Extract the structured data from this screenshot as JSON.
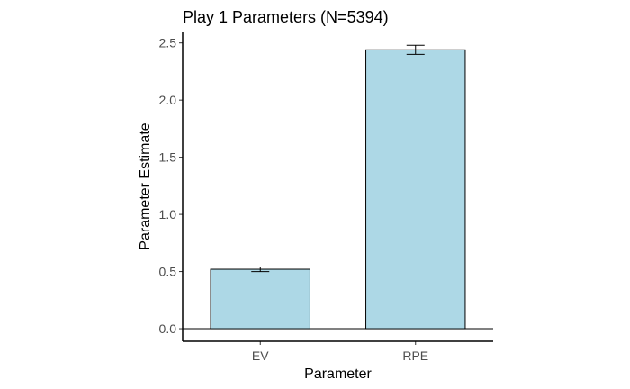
{
  "chart_data": {
    "type": "bar",
    "title": "Play 1 Parameters (N=5394)",
    "xlabel": "Parameter",
    "ylabel": "Parameter Estimate",
    "categories": [
      "EV",
      "RPE"
    ],
    "values": [
      0.52,
      2.44
    ],
    "error": [
      0.02,
      0.04
    ],
    "ylim": [
      -0.11,
      2.6
    ],
    "yticks": [
      0.0,
      0.5,
      1.0,
      1.5,
      2.0,
      2.5
    ],
    "ytick_labels": [
      "0.0",
      "0.5",
      "1.0",
      "1.5",
      "2.0",
      "2.5"
    ],
    "grid": false,
    "reference_line": 0,
    "colors": {
      "bar_fill": "#add8e6",
      "bar_stroke": "#000000"
    }
  }
}
